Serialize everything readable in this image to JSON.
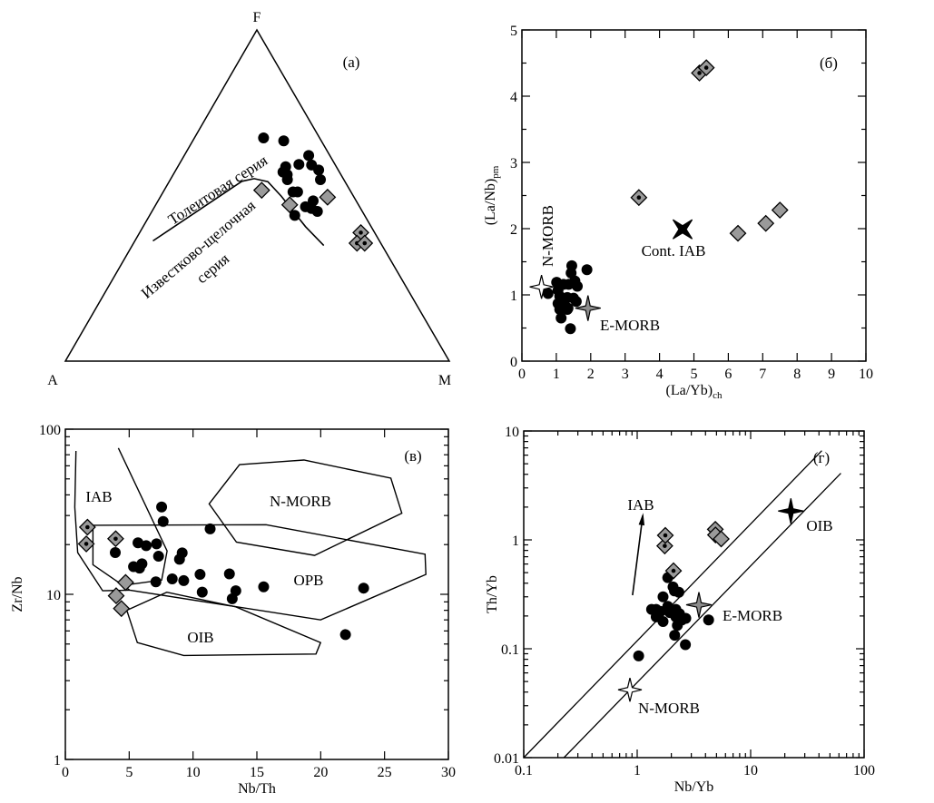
{
  "colors": {
    "marker_black": "#000000",
    "diamond_gray": "#9a9a9a",
    "star_gray": "#8c8c8c",
    "star_white": "#ffffff"
  },
  "chart_data": [
    {
      "id": "a",
      "type": "ternary",
      "panel_label": "(а)",
      "apices": {
        "top": "F",
        "left": "A",
        "right": "M"
      },
      "point_format": "[M fraction, F fraction], A = 1 - M - F",
      "series": [
        {
          "name": "basalts",
          "marker": "circle",
          "points": [
            [
              0.18,
              0.674
            ],
            [
              0.237,
              0.665
            ],
            [
              0.324,
              0.621
            ],
            [
              0.312,
              0.594
            ],
            [
              0.346,
              0.592
            ],
            [
              0.372,
              0.577
            ],
            [
              0.391,
              0.548
            ],
            [
              0.281,
              0.587
            ],
            [
              0.282,
              0.571
            ],
            [
              0.297,
              0.563
            ],
            [
              0.305,
              0.548
            ],
            [
              0.338,
              0.511
            ],
            [
              0.35,
              0.511
            ],
            [
              0.404,
              0.484
            ],
            [
              0.393,
              0.466
            ],
            [
              0.411,
              0.461
            ],
            [
              0.431,
              0.452
            ],
            [
              0.378,
              0.44
            ]
          ]
        },
        {
          "name": "diamonds",
          "marker": "diamond",
          "points": [
            [
              0.254,
              0.516
            ],
            [
              0.349,
              0.472
            ],
            [
              0.436,
              0.495
            ]
          ]
        },
        {
          "name": "diamonds-dot",
          "marker": "diamond-dot",
          "points": [
            [
              0.576,
              0.388
            ],
            [
              0.582,
              0.356
            ],
            [
              0.602,
              0.356
            ]
          ]
        }
      ],
      "curves": [
        [
          [
            0.047,
            0.363
          ],
          [
            0.189,
            0.543
          ],
          [
            0.217,
            0.551
          ],
          [
            0.257,
            0.542
          ],
          [
            0.314,
            0.498
          ],
          [
            0.423,
            0.406
          ],
          [
            0.499,
            0.349
          ]
        ]
      ],
      "annotations": [
        "Толеитовая серия",
        "Известково-щелочная",
        "серия"
      ]
    },
    {
      "id": "b",
      "type": "scatter",
      "panel_label": "(б)",
      "xlabel": "(La/Yb)",
      "xlabel_sub": "ch",
      "ylabel": "(La/Nb)",
      "ylabel_sub": "pm",
      "xscale": "linear",
      "yscale": "linear",
      "xlim": [
        0,
        10
      ],
      "ylim": [
        0,
        5
      ],
      "xticks": [
        "0",
        "1",
        "2",
        "3",
        "4",
        "5",
        "6",
        "7",
        "8",
        "9",
        "10"
      ],
      "yticks": [
        "0",
        "1",
        "2",
        "3",
        "4",
        "5"
      ],
      "series": [
        {
          "name": "basalts",
          "marker": "circle",
          "points": [
            [
              1.45,
              1.44
            ],
            [
              1.43,
              1.33
            ],
            [
              1.89,
              1.38
            ],
            [
              1.01,
              1.19
            ],
            [
              1.21,
              1.16
            ],
            [
              1.36,
              1.16
            ],
            [
              1.54,
              1.21
            ],
            [
              1.61,
              1.13
            ],
            [
              1.05,
              1.07
            ],
            [
              0.76,
              1.02
            ],
            [
              1.1,
              0.98
            ],
            [
              1.32,
              0.96
            ],
            [
              1.5,
              0.95
            ],
            [
              1.23,
              0.87
            ],
            [
              1.58,
              0.9
            ],
            [
              1.34,
              0.8
            ],
            [
              1.1,
              0.78
            ],
            [
              1.32,
              0.78
            ],
            [
              1.14,
              0.65
            ],
            [
              1.41,
              0.49
            ],
            [
              1.05,
              0.87
            ]
          ]
        },
        {
          "name": "diamonds-dot",
          "marker": "diamond-dot",
          "points": [
            [
              5.16,
              4.35
            ],
            [
              5.36,
              4.43
            ],
            [
              3.4,
              2.47
            ]
          ]
        },
        {
          "name": "diamonds",
          "marker": "diamond",
          "points": [
            [
              6.28,
              1.93
            ],
            [
              7.09,
              2.08
            ],
            [
              7.5,
              2.28
            ]
          ]
        },
        {
          "name": "N-MORB",
          "marker": "star-white",
          "points": [
            [
              0.57,
              1.12
            ]
          ]
        },
        {
          "name": "E-MORB",
          "marker": "star-gray",
          "points": [
            [
              1.92,
              0.8
            ]
          ]
        },
        {
          "name": "Cont. IAB",
          "marker": "star-black-x",
          "points": [
            [
              4.67,
              1.99
            ]
          ]
        }
      ],
      "annotations": [
        "N-MORB",
        "Cont. IAB",
        "E-MORB"
      ]
    },
    {
      "id": "c",
      "type": "scatter",
      "panel_label": "(в)",
      "xlabel": "Nb/Th",
      "ylabel": "Zr/Nb",
      "xscale": "linear",
      "yscale": "log",
      "xlim": [
        0,
        30
      ],
      "ylim": [
        1,
        100
      ],
      "xticks": [
        "0",
        "5",
        "10",
        "15",
        "20",
        "25",
        "30"
      ],
      "yticks": [
        "1",
        "10",
        "100"
      ],
      "series": [
        {
          "name": "basalts",
          "marker": "circle",
          "points": [
            [
              7.54,
              33.8
            ],
            [
              7.66,
              27.6
            ],
            [
              11.34,
              24.9
            ],
            [
              3.91,
              17.9
            ],
            [
              5.69,
              20.5
            ],
            [
              6.33,
              19.7
            ],
            [
              7.14,
              20.2
            ],
            [
              7.3,
              17.0
            ],
            [
              9.15,
              17.8
            ],
            [
              8.94,
              16.3
            ],
            [
              5.34,
              14.7
            ],
            [
              6.0,
              15.3
            ],
            [
              5.81,
              14.4
            ],
            [
              7.09,
              11.9
            ],
            [
              8.37,
              12.4
            ],
            [
              9.27,
              12.1
            ],
            [
              10.55,
              13.2
            ],
            [
              10.72,
              10.3
            ],
            [
              12.85,
              13.3
            ],
            [
              13.35,
              10.5
            ],
            [
              13.07,
              9.4
            ],
            [
              15.53,
              11.1
            ],
            [
              23.36,
              10.9
            ],
            [
              21.94,
              5.7
            ]
          ]
        },
        {
          "name": "diamonds-dot",
          "marker": "diamond-dot",
          "points": [
            [
              1.73,
              25.5
            ],
            [
              3.94,
              21.7
            ],
            [
              1.64,
              20.2
            ]
          ]
        },
        {
          "name": "diamonds",
          "marker": "diamond",
          "points": [
            [
              4.72,
              11.8
            ],
            [
              3.98,
              9.8
            ],
            [
              4.39,
              8.2
            ]
          ]
        }
      ],
      "fields": [
        {
          "name": "N-MORB",
          "closed": true,
          "points": [
            [
              11.26,
              35.3
            ],
            [
              13.64,
              61
            ],
            [
              18.69,
              65
            ],
            [
              25.49,
              50.5
            ],
            [
              26.35,
              31
            ],
            [
              19.52,
              17.2
            ],
            [
              13.4,
              20.7
            ]
          ]
        },
        {
          "name": "OPB",
          "closed": true,
          "points": [
            [
              2.16,
              26.2
            ],
            [
              15.72,
              26.4
            ],
            [
              28.17,
              17.5
            ],
            [
              28.24,
              13.2
            ],
            [
              19.99,
              7.0
            ],
            [
              5.05,
              10.6
            ],
            [
              2.16,
              15.1
            ]
          ]
        },
        {
          "name": "IAB-left",
          "closed": false,
          "points": [
            [
              0.83,
              73.8
            ],
            [
              0.74,
              33.7
            ],
            [
              0.97,
              17.9
            ],
            [
              2.92,
              10.5
            ],
            [
              5.05,
              10.6
            ]
          ]
        },
        {
          "name": "IAB-right",
          "closed": false,
          "points": [
            [
              4.15,
              76.9
            ],
            [
              7.97,
              18.3
            ],
            [
              7.54,
              12.2
            ],
            [
              4.81,
              11.4
            ]
          ]
        },
        {
          "name": "OIB",
          "closed": true,
          "points": [
            [
              7.94,
              10.3
            ],
            [
              13.35,
              8.4
            ],
            [
              19.99,
              5.1
            ],
            [
              19.63,
              4.35
            ],
            [
              9.27,
              4.26
            ],
            [
              5.64,
              5.1
            ],
            [
              4.81,
              8.0
            ]
          ]
        }
      ],
      "annotations": [
        "IAB",
        "N-MORB",
        "OPB",
        "OIB"
      ]
    },
    {
      "id": "d",
      "type": "scatter",
      "panel_label": "(г)",
      "xlabel": "Nb/Yb",
      "ylabel": "Th/Yb",
      "xscale": "log",
      "yscale": "log",
      "xlim": [
        0.1,
        100
      ],
      "ylim": [
        0.01,
        10
      ],
      "xticks": [
        "0.1",
        "1",
        "10",
        "100"
      ],
      "yticks": [
        "0.01",
        "0.1",
        "1",
        "10"
      ],
      "series": [
        {
          "name": "basalts",
          "marker": "circle",
          "points": [
            [
              1.86,
              0.45
            ],
            [
              2.07,
              0.37
            ],
            [
              2.13,
              0.34
            ],
            [
              2.33,
              0.33
            ],
            [
              1.69,
              0.3
            ],
            [
              1.34,
              0.23
            ],
            [
              1.47,
              0.23
            ],
            [
              1.61,
              0.22
            ],
            [
              1.86,
              0.245
            ],
            [
              1.94,
              0.215
            ],
            [
              2.19,
              0.23
            ],
            [
              2.36,
              0.21
            ],
            [
              1.47,
              0.196
            ],
            [
              1.69,
              0.178
            ],
            [
              2.19,
              0.196
            ],
            [
              2.48,
              0.184
            ],
            [
              2.26,
              0.164
            ],
            [
              2.68,
              0.19
            ],
            [
              2.14,
              0.133
            ],
            [
              2.66,
              0.109
            ],
            [
              4.26,
              0.184
            ],
            [
              1.03,
              0.086
            ]
          ]
        },
        {
          "name": "diamonds-dot",
          "marker": "diamond-dot",
          "points": [
            [
              1.75,
              0.88
            ],
            [
              1.77,
              1.1
            ],
            [
              2.09,
              0.52
            ]
          ]
        },
        {
          "name": "diamonds",
          "marker": "diamond",
          "points": [
            [
              4.88,
              1.25
            ],
            [
              4.9,
              1.11
            ],
            [
              5.5,
              1.02
            ]
          ]
        },
        {
          "name": "OIB",
          "marker": "star-black",
          "points": [
            [
              22.6,
              1.84
            ]
          ]
        },
        {
          "name": "E-MORB",
          "marker": "star-gray",
          "points": [
            [
              3.5,
              0.253
            ]
          ]
        },
        {
          "name": "N-MORB",
          "marker": "star-white",
          "points": [
            [
              0.863,
              0.042
            ]
          ]
        }
      ],
      "lines": [
        {
          "name": "upper-boundary",
          "points": [
            [
              0.1,
              0.01
            ],
            [
              42.4,
              6.6
            ]
          ]
        },
        {
          "name": "lower-boundary",
          "points": [
            [
              0.226,
              0.01
            ],
            [
              62.4,
              4.09
            ]
          ]
        }
      ],
      "arrow": {
        "name": "IAB-trend",
        "from": [
          0.91,
          0.31
        ],
        "to": [
          1.12,
          1.67
        ]
      },
      "annotations": [
        "IAB",
        "OIB",
        "E-MORB",
        "N-MORB"
      ]
    }
  ]
}
